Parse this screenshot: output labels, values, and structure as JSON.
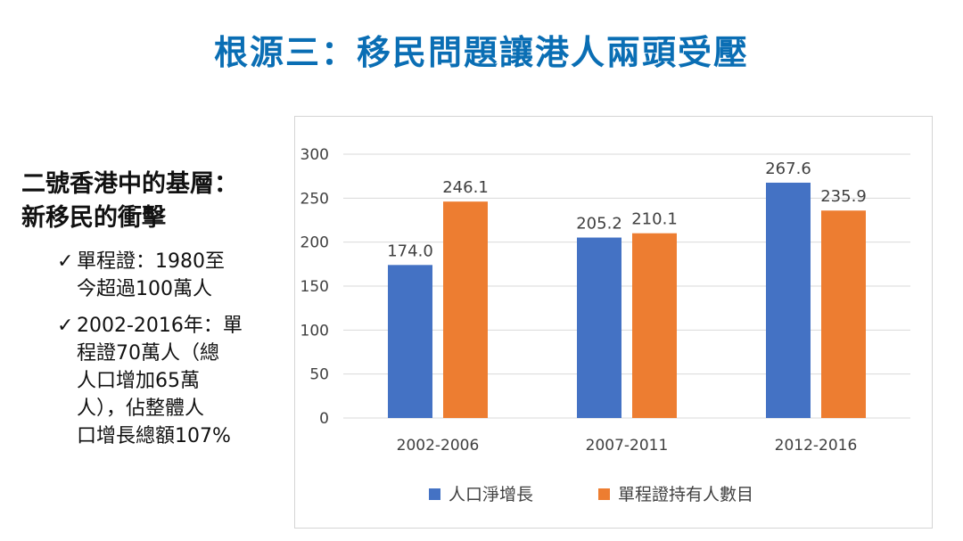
{
  "slide": {
    "title": "根源三：移民問題讓港人兩頭受壓",
    "heading_line1": "二號香港中的基層：",
    "heading_line2": "新移民的衝擊",
    "bullets": [
      {
        "check": "✓",
        "lines": [
          "單程證：1980至",
          "今超過100萬人"
        ]
      },
      {
        "check": "✓",
        "lines": [
          "2002-2016年：單",
          "程證70萬人（總",
          "人口增加65萬",
          "人），佔整體人",
          "口增長總額107%"
        ]
      }
    ]
  },
  "colors": {
    "title": "#0a6eb4",
    "series1": "#4472c4",
    "series2": "#ed7d31",
    "grid": "#d9d9d9",
    "text": "#404040"
  },
  "chart_data": {
    "type": "bar",
    "title": "",
    "xlabel": "",
    "ylabel": "",
    "categories": [
      "2002-2006",
      "2007-2011",
      "2012-2016"
    ],
    "series": [
      {
        "name": "人口淨增長",
        "values": [
          174.0,
          205.2,
          267.6
        ],
        "labels": [
          "174.0",
          "205.2",
          "267.6"
        ]
      },
      {
        "name": "單程證持有人數目",
        "values": [
          246.1,
          210.1,
          235.9
        ],
        "labels": [
          "246.1",
          "210.1",
          "235.9"
        ]
      }
    ],
    "ylim": [
      0,
      300
    ],
    "yticks": [
      0,
      50,
      100,
      150,
      200,
      250,
      300
    ],
    "grid": true,
    "legend": "bottom"
  }
}
